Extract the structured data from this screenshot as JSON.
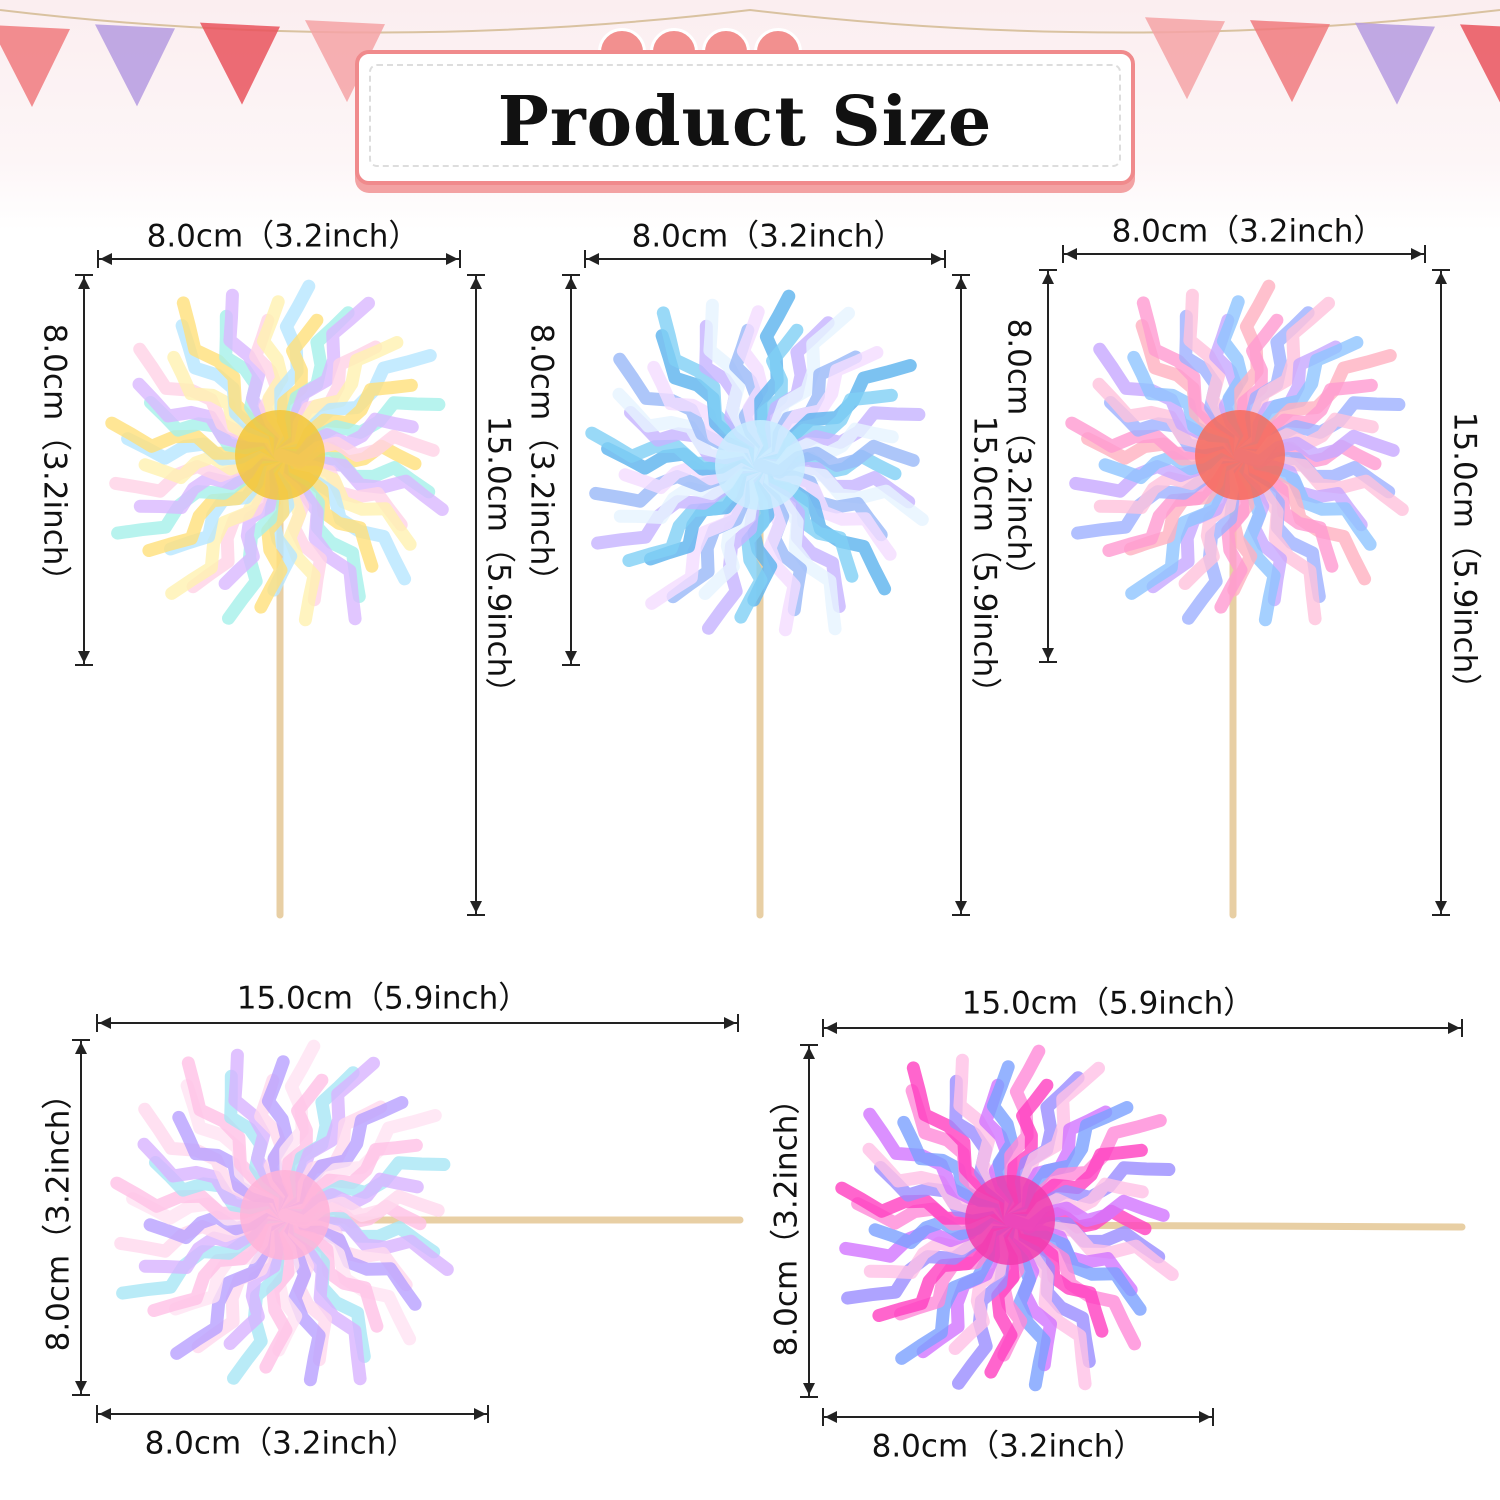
{
  "title": "Product Size",
  "colors": {
    "accent": "#f08a8c",
    "pennants": [
      "#f07a7e",
      "#b59be0",
      "#e9545d",
      "#f5a3a6"
    ],
    "stick": "#e8cfa4"
  },
  "flowers": [
    {
      "palette": [
        "#ffe07a",
        "#a5f0ea",
        "#d9b8ff",
        "#ffd2e6",
        "#fff1b0",
        "#b7e6ff"
      ],
      "core": "#f2c53a"
    },
    {
      "palette": [
        "#7fd0f5",
        "#c5b3ff",
        "#e6f4ff",
        "#98b8f7",
        "#f4dcff",
        "#5bb3ee"
      ],
      "core": "#c9ecff"
    },
    {
      "palette": [
        "#ff9ad1",
        "#9db0ff",
        "#ffc2dc",
        "#c7a8ff",
        "#8fc4ff",
        "#ffb0c0"
      ],
      "core": "#f66b5a"
    },
    {
      "palette": [
        "#ffc1e6",
        "#a7e6f5",
        "#d8b3ff",
        "#ffd8ee",
        "#b8a0ff",
        "#ffe2f2"
      ],
      "core": "#ffb3d8"
    },
    {
      "palette": [
        "#ff3fc0",
        "#9a8cff",
        "#ffc0e6",
        "#d274ff",
        "#7aa0ff",
        "#ff8ad8"
      ],
      "core": "#f03cae"
    }
  ],
  "items": [
    {
      "width": "8.0cm（3.2inch）",
      "head_height": "8.0cm（3.2inch）",
      "total_height": "15.0cm（5.9inch）"
    },
    {
      "width": "8.0cm（3.2inch）",
      "head_height": "8.0cm（3.2inch）",
      "total_height": "15.0cm（5.9inch）"
    },
    {
      "width": "8.0cm（3.2inch）",
      "head_height": "8.0cm（3.2inch）",
      "total_height": "15.0cm（5.9inch）"
    },
    {
      "total_length": "15.0cm（5.9inch）",
      "head_height": "8.0cm（3.2inch）",
      "head_width": "8.0cm（3.2inch）"
    },
    {
      "total_length": "15.0cm（5.9inch）",
      "head_height": "8.0cm（3.2inch）",
      "head_width": "8.0cm（3.2inch）"
    }
  ]
}
